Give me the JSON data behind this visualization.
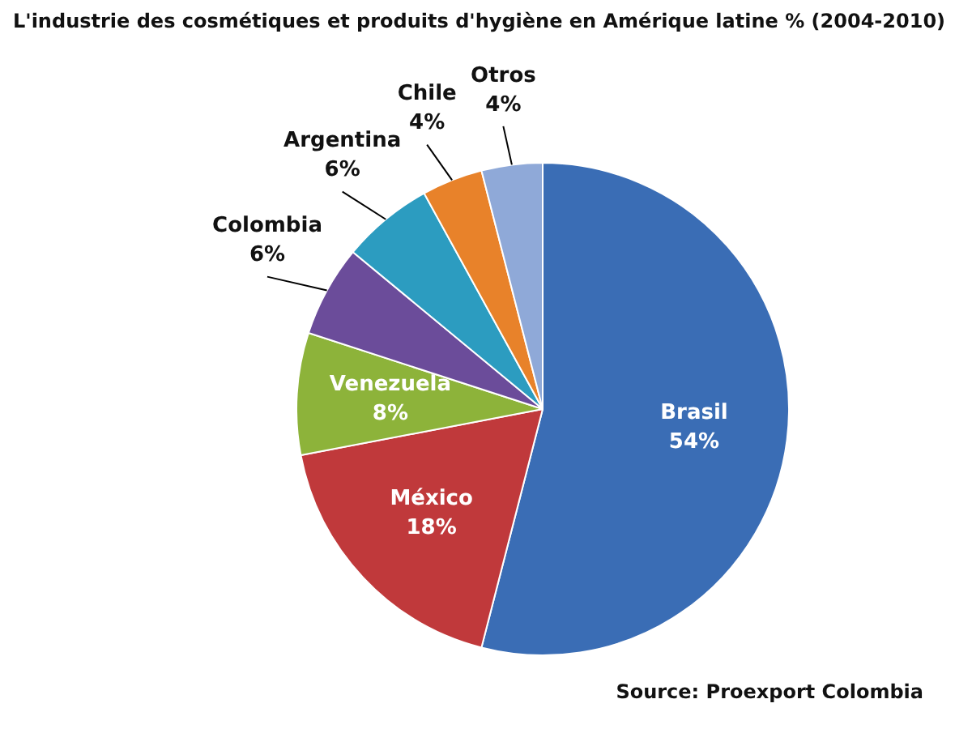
{
  "chart_data": {
    "type": "pie",
    "title": "L'industrie des cosmétiques et produits d'hygiène en Amérique latine % (2004-2010)",
    "categories": [
      "Brasil",
      "México",
      "Venezuela",
      "Colombia",
      "Argentina",
      "Chile",
      "Otros"
    ],
    "values": [
      54,
      18,
      8,
      6,
      6,
      4,
      4
    ],
    "value_labels": [
      "54%",
      "18%",
      "8%",
      "6%",
      "6%",
      "4%",
      "4%"
    ],
    "colors": [
      "#3a6db5",
      "#c0393b",
      "#8db33a",
      "#6b4c9a",
      "#2c9cc0",
      "#e8822a",
      "#8fa9d8"
    ],
    "legend": false,
    "annotations": [
      "Source: Proexport Colombia"
    ]
  }
}
